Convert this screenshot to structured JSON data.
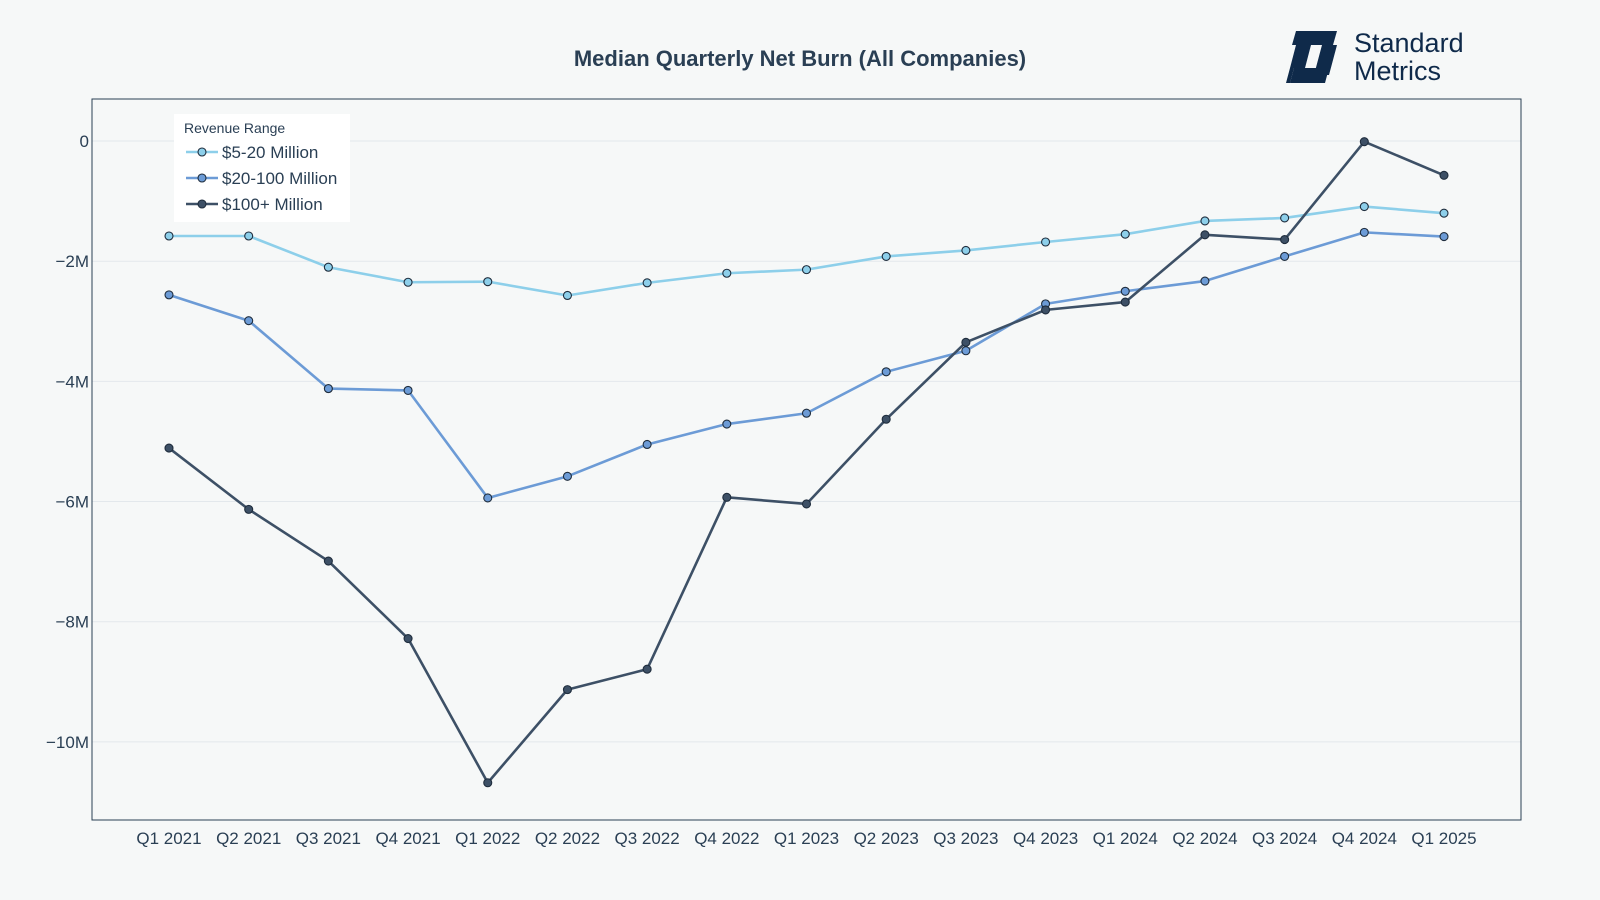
{
  "brand": {
    "line1": "Standard",
    "line2": "Metrics",
    "color": "#0f2a4a"
  },
  "chart_data": {
    "type": "line",
    "title": "Median Quarterly Net Burn (All Companies)",
    "xlabel": "",
    "ylabel": "",
    "categories": [
      "Q1 2021",
      "Q2 2021",
      "Q3 2021",
      "Q4 2021",
      "Q1 2022",
      "Q2 2022",
      "Q3 2022",
      "Q4 2022",
      "Q1 2023",
      "Q2 2023",
      "Q3 2023",
      "Q4 2023",
      "Q1 2024",
      "Q2 2024",
      "Q3 2024",
      "Q4 2024",
      "Q1 2025"
    ],
    "ylim": [
      -11300000,
      700000
    ],
    "yticks": [
      0,
      -2000000,
      -4000000,
      -6000000,
      -8000000,
      -10000000
    ],
    "ytick_labels": [
      "0",
      "−2M",
      "−4M",
      "−6M",
      "−8M",
      "−10M"
    ],
    "grid": true,
    "legend": {
      "title": "Revenue Range",
      "placement": "top-left"
    },
    "series": [
      {
        "name": "$5-20 Million",
        "color": "#8dcfea",
        "values": [
          -1580000,
          -1580000,
          -2100000,
          -2350000,
          -2340000,
          -2570000,
          -2360000,
          -2200000,
          -2140000,
          -1920000,
          -1820000,
          -1680000,
          -1550000,
          -1330000,
          -1280000,
          -1090000,
          -1200000
        ]
      },
      {
        "name": "$20-100 Million",
        "color": "#6c9bd6",
        "values": [
          -2560000,
          -2990000,
          -4120000,
          -4150000,
          -5940000,
          -5580000,
          -5050000,
          -4710000,
          -4530000,
          -3840000,
          -3490000,
          -2710000,
          -2500000,
          -2330000,
          -1920000,
          -1520000,
          -1590000
        ]
      },
      {
        "name": "$100+ Million",
        "color": "#3d5066",
        "values": [
          -5110000,
          -6130000,
          -6990000,
          -8280000,
          -10680000,
          -9130000,
          -8790000,
          -5930000,
          -6040000,
          -4630000,
          -3350000,
          -2810000,
          -2680000,
          -1560000,
          -1640000,
          -10000,
          -570000
        ]
      }
    ]
  }
}
